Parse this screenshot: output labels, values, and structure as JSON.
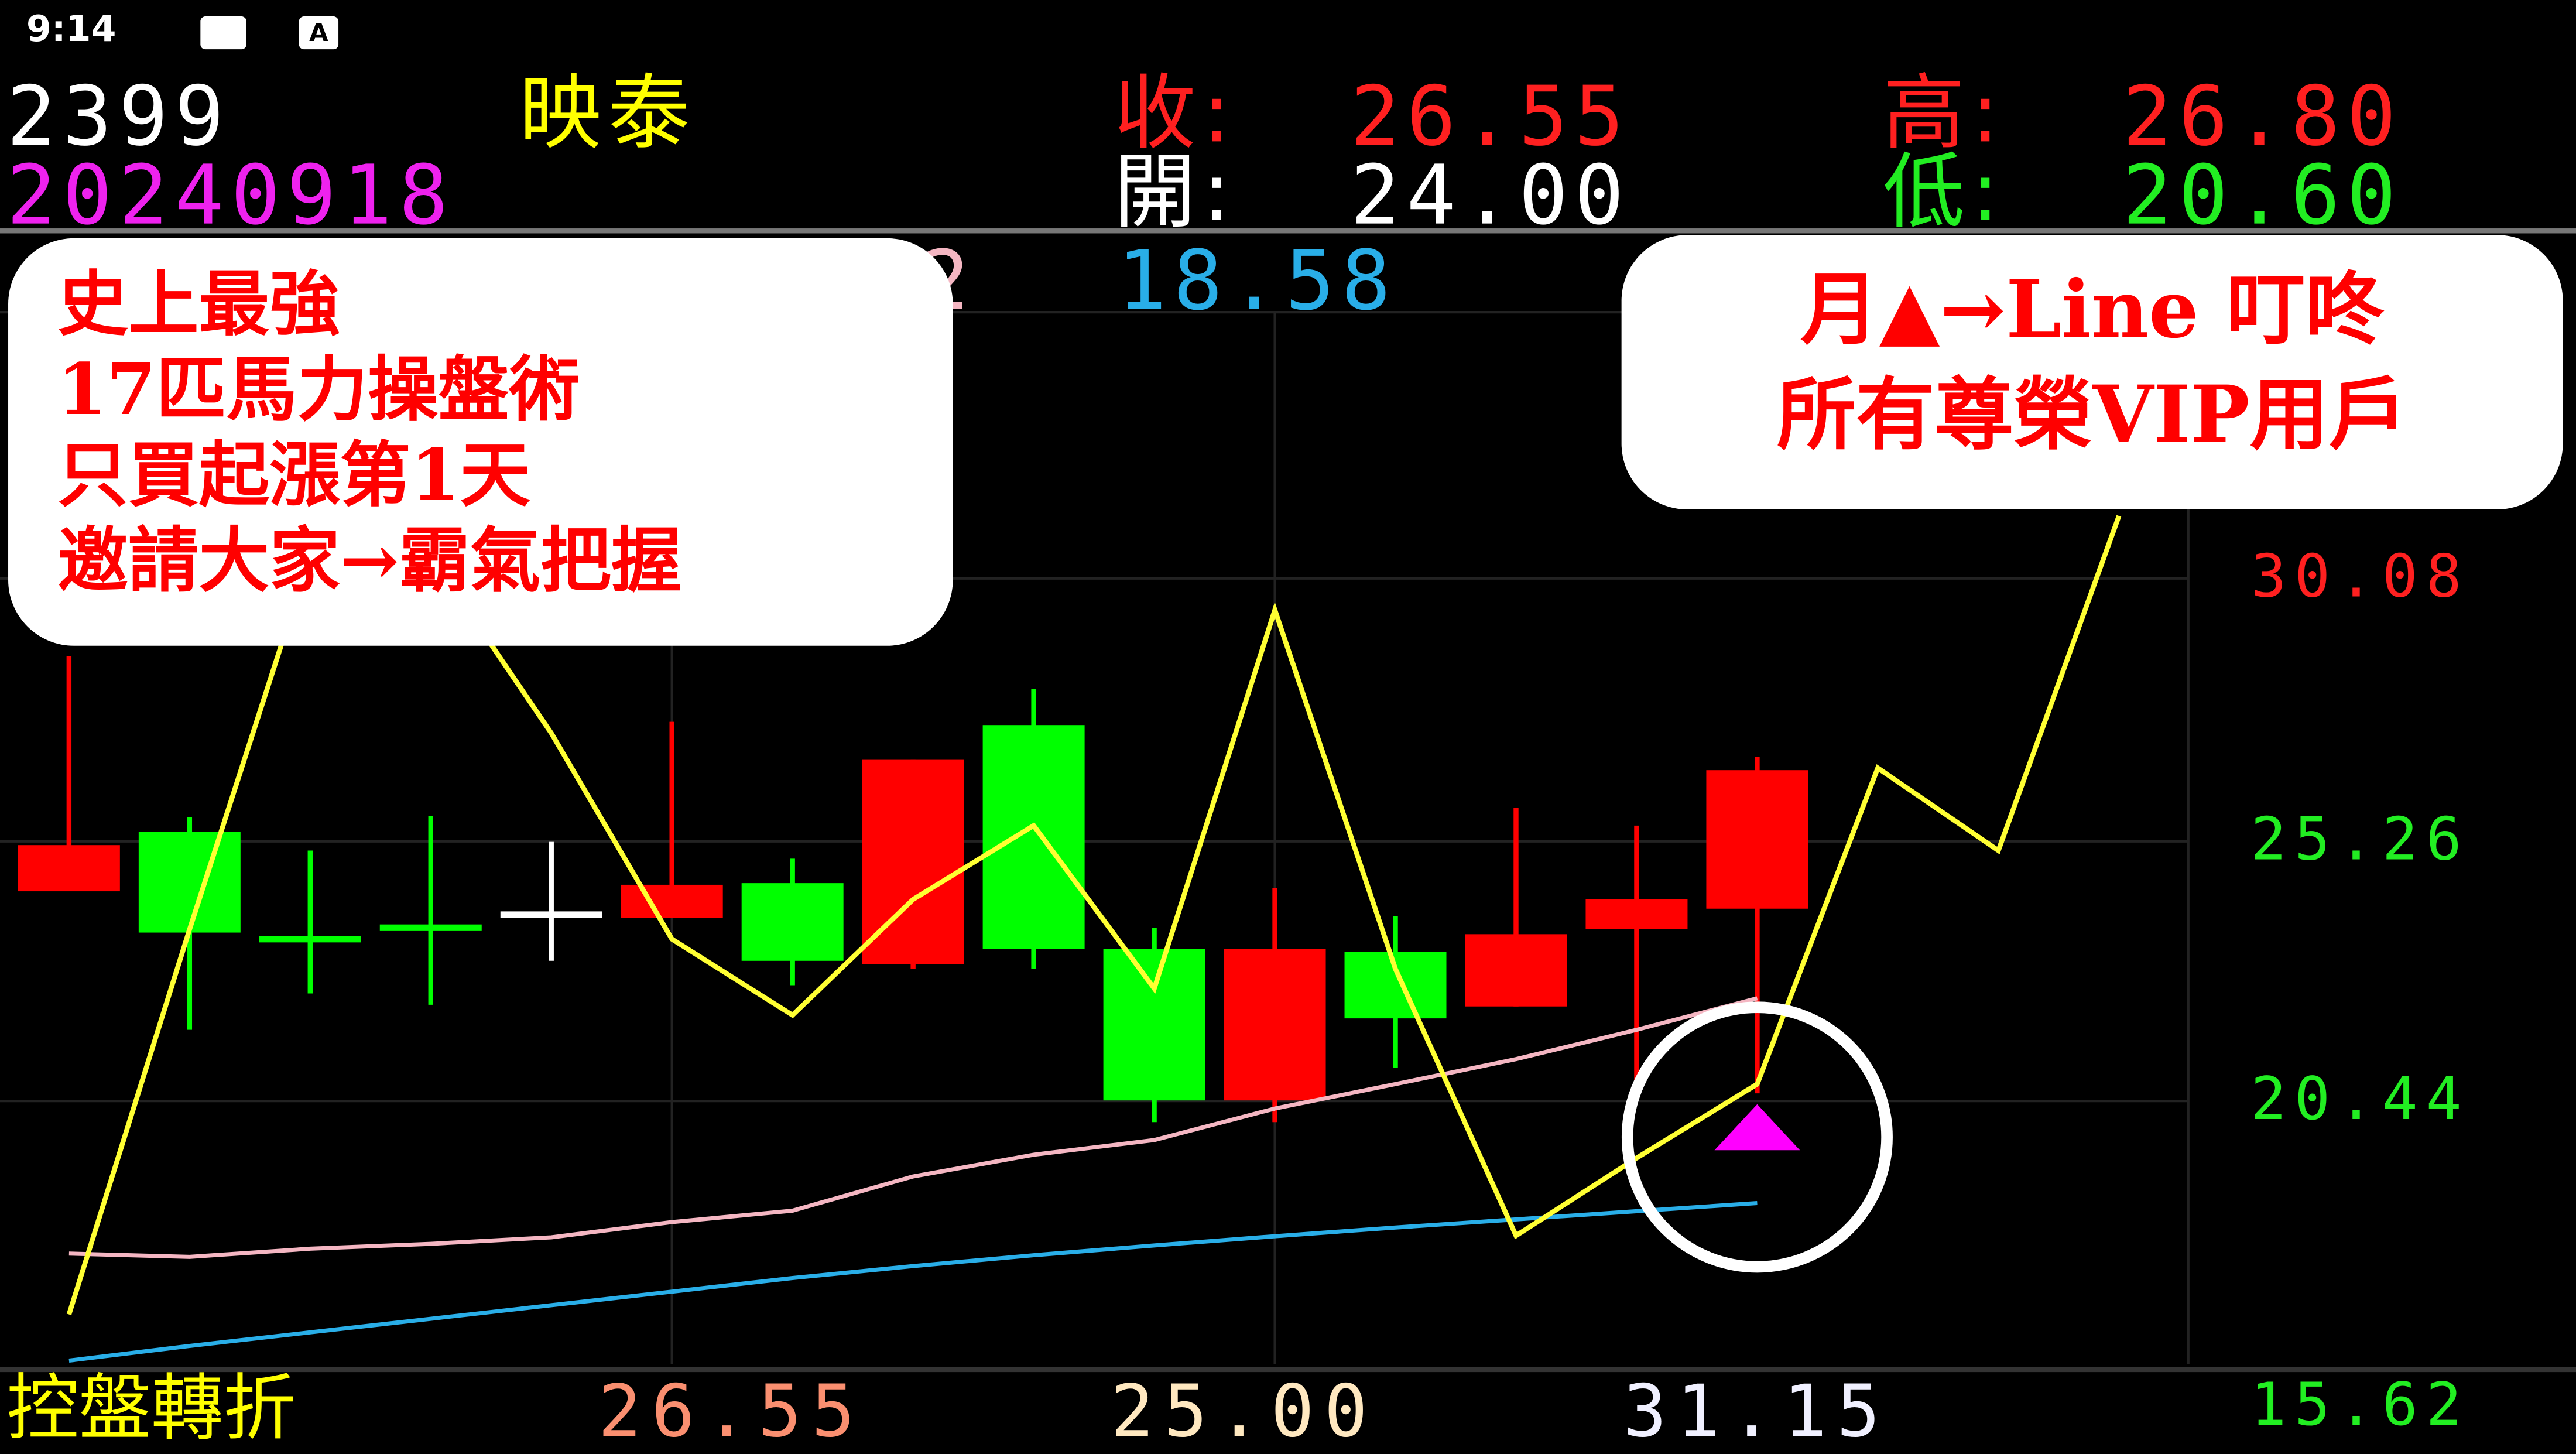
{
  "status_bar": {
    "time": "9:14",
    "icons": [
      "image-icon",
      "a-icon"
    ]
  },
  "header": {
    "code": "2399",
    "name": "映泰",
    "date": "20240918",
    "close_label": "收:",
    "close": "26.55",
    "high_label": "高:",
    "high": "26.80",
    "open_label": "開:",
    "open": "24.00",
    "low_label": "低:",
    "low": "20.60",
    "ma_partial": "2",
    "ma_blue": "18.58"
  },
  "promo_left": {
    "lines": [
      "史上最強",
      "17匹馬力操盤術",
      "只買起漲第1天",
      "邀請大家→霸氣把握"
    ]
  },
  "promo_right": {
    "lines": [
      "月▲→Line 叮咚",
      "所有尊榮VIP用戶"
    ]
  },
  "axis": {
    "labels": [
      "30.08",
      "25.26",
      "20.44",
      "15.62"
    ],
    "colors": [
      "#ff2020",
      "#22ee22",
      "#22ee22",
      "#22ee22"
    ]
  },
  "footer": {
    "title": "控盤轉折",
    "v1": "26.55",
    "v2": "25.00",
    "v3": "31.15"
  },
  "colors": {
    "up": "#ff0000",
    "down": "#00ff00",
    "yellow_line": "#ffff33",
    "pink_ma": "#f4b6c2",
    "blue_ma": "#29aee8",
    "signal": "#ff00ff"
  },
  "chart_data": {
    "type": "candlestick",
    "ylim": [
      15.62,
      30.08
    ],
    "candles": [
      {
        "o": 24.32,
        "h": 28.65,
        "l": 24.32,
        "c": 25.17
      },
      {
        "o": 25.41,
        "h": 25.68,
        "l": 21.77,
        "c": 23.56
      },
      {
        "o": 23.5,
        "h": 25.07,
        "l": 22.44,
        "c": 23.38
      },
      {
        "o": 23.71,
        "h": 25.71,
        "l": 22.23,
        "c": 23.59
      },
      {
        "o": 23.95,
        "h": 25.23,
        "l": 23.04,
        "c": 23.95
      },
      {
        "o": 23.83,
        "h": 27.44,
        "l": 23.83,
        "c": 24.44
      },
      {
        "o": 24.47,
        "h": 24.92,
        "l": 22.59,
        "c": 23.04
      },
      {
        "o": 22.98,
        "h": 26.74,
        "l": 22.89,
        "c": 26.74
      },
      {
        "o": 27.38,
        "h": 28.04,
        "l": 22.89,
        "c": 23.26
      },
      {
        "o": 23.26,
        "h": 23.65,
        "l": 20.07,
        "c": 20.47
      },
      {
        "o": 20.47,
        "h": 24.38,
        "l": 20.07,
        "c": 23.26
      },
      {
        "o": 23.2,
        "h": 23.86,
        "l": 21.07,
        "c": 21.98
      },
      {
        "o": 22.2,
        "h": 25.86,
        "l": 22.2,
        "c": 23.53
      },
      {
        "o": 23.62,
        "h": 25.53,
        "l": 20.62,
        "c": 24.17
      },
      {
        "o": 24.0,
        "h": 26.8,
        "l": 20.6,
        "c": 26.55
      }
    ],
    "yellow_line": [
      16.53,
      23.62,
      30.5,
      30.5,
      27.23,
      23.44,
      22.04,
      24.17,
      25.53,
      22.53,
      29.5,
      22.89,
      17.98,
      19.41,
      20.77,
      26.59,
      25.07,
      31.23
    ],
    "pink_ma": [
      17.65,
      17.59,
      17.74,
      17.83,
      17.95,
      18.23,
      18.44,
      19.07,
      19.47,
      19.74,
      20.32,
      20.77,
      21.23,
      21.77,
      22.35
    ],
    "blue_ma": [
      15.68,
      15.95,
      16.2,
      16.45,
      16.7,
      16.95,
      17.2,
      17.42,
      17.62,
      17.8,
      17.97,
      18.13,
      18.28,
      18.43,
      18.58
    ],
    "signal": {
      "type": "up-triangle",
      "index": 14
    }
  }
}
